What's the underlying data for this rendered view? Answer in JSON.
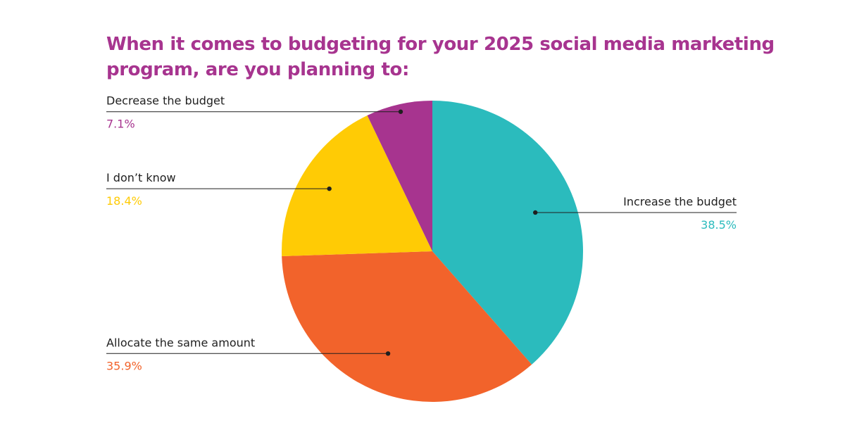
{
  "chart_data": {
    "type": "pie",
    "title_lines": [
      "When it comes to budgeting for your 2025 social media marketing",
      "program, are you planning to:"
    ],
    "slices": [
      {
        "label": "Increase the budget",
        "value": 38.5,
        "value_text": "38.5%",
        "color": "#2bbbbd"
      },
      {
        "label": "Allocate the same amount",
        "value": 35.9,
        "value_text": "35.9%",
        "color": "#f2632b"
      },
      {
        "label": "I don’t know",
        "value": 18.4,
        "value_text": "18.4%",
        "color": "#ffcb05"
      },
      {
        "label": "Decrease the budget",
        "value": 7.1,
        "value_text": "7.1%",
        "color": "#a7348f"
      }
    ],
    "title_color": "#a7348f",
    "legend": "none",
    "callout_line_color": "#1f1f1f"
  }
}
